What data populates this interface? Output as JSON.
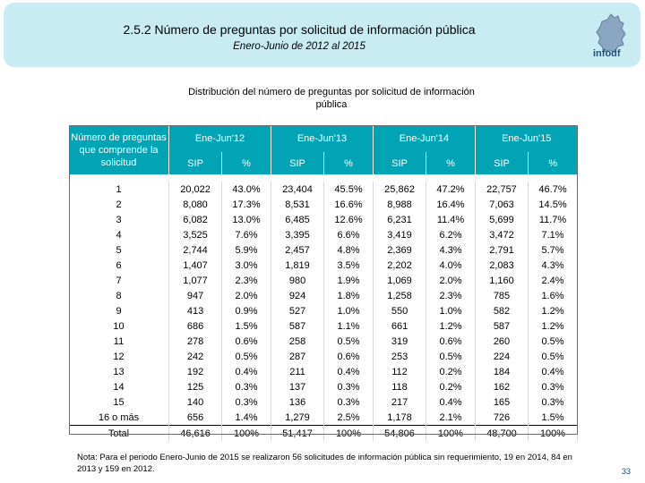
{
  "header": {
    "title": "2.5.2 Número de preguntas por solicitud de información pública",
    "subtitle": "Enero-Junio de 2012 al 2015",
    "logo_text": "infodf"
  },
  "table_caption": "Distribución del número de preguntas por solicitud de información pública",
  "table": {
    "row_header": "Número de preguntas que comprende la solicitud",
    "years": [
      "Ene-Jun'12",
      "Ene-Jun'13",
      "Ene-Jun'14",
      "Ene-Jun'15"
    ],
    "sub_headers": [
      "SIP",
      "%"
    ],
    "rows": [
      [
        "1",
        "20,022",
        "43.0%",
        "23,404",
        "45.5%",
        "25,862",
        "47.2%",
        "22,757",
        "46.7%"
      ],
      [
        "2",
        "8,080",
        "17.3%",
        "8,531",
        "16.6%",
        "8,988",
        "16.4%",
        "7,063",
        "14.5%"
      ],
      [
        "3",
        "6,082",
        "13.0%",
        "6,485",
        "12.6%",
        "6,231",
        "11.4%",
        "5,699",
        "11.7%"
      ],
      [
        "4",
        "3,525",
        "7.6%",
        "3,395",
        "6.6%",
        "3,419",
        "6.2%",
        "3,472",
        "7.1%"
      ],
      [
        "5",
        "2,744",
        "5.9%",
        "2,457",
        "4.8%",
        "2,369",
        "4.3%",
        "2,791",
        "5.7%"
      ],
      [
        "6",
        "1,407",
        "3.0%",
        "1,819",
        "3.5%",
        "2,202",
        "4.0%",
        "2,083",
        "4.3%"
      ],
      [
        "7",
        "1,077",
        "2.3%",
        "980",
        "1.9%",
        "1,069",
        "2.0%",
        "1,160",
        "2.4%"
      ],
      [
        "8",
        "947",
        "2.0%",
        "924",
        "1.8%",
        "1,258",
        "2.3%",
        "785",
        "1.6%"
      ],
      [
        "9",
        "413",
        "0.9%",
        "527",
        "1.0%",
        "550",
        "1.0%",
        "582",
        "1.2%"
      ],
      [
        "10",
        "686",
        "1.5%",
        "587",
        "1.1%",
        "661",
        "1.2%",
        "587",
        "1.2%"
      ],
      [
        "11",
        "278",
        "0.6%",
        "258",
        "0.5%",
        "319",
        "0.6%",
        "260",
        "0.5%"
      ],
      [
        "12",
        "242",
        "0.5%",
        "287",
        "0.6%",
        "253",
        "0.5%",
        "224",
        "0.5%"
      ],
      [
        "13",
        "192",
        "0.4%",
        "211",
        "0.4%",
        "112",
        "0.2%",
        "184",
        "0.4%"
      ],
      [
        "14",
        "125",
        "0.3%",
        "137",
        "0.3%",
        "118",
        "0.2%",
        "162",
        "0.3%"
      ],
      [
        "15",
        "140",
        "0.3%",
        "136",
        "0.3%",
        "217",
        "0.4%",
        "165",
        "0.3%"
      ],
      [
        "16 o más",
        "656",
        "1.4%",
        "1,279",
        "2.5%",
        "1,178",
        "2.1%",
        "726",
        "1.5%"
      ]
    ],
    "total": [
      "Total",
      "46,616",
      "100%",
      "51,417",
      "100%",
      "54,806",
      "100%",
      "48,700",
      "100%"
    ]
  },
  "note": "Nota: Para el periodo Enero-Junio de 2015 se realizaron 56 solicitudes de información pública sin requerimiento, 19 en 2014, 84 en 2013 y 159 en 2012.",
  "page_number": "33",
  "colors": {
    "header_bg": "#c9ecf2",
    "table_header_bg": "#00a4b4"
  }
}
